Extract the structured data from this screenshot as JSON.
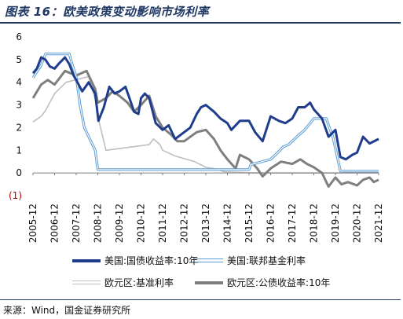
{
  "title": "图表 16：欧美政策变动影响市场利率",
  "source": "来源：Wind，国金证券研究所",
  "chart_data": {
    "type": "line",
    "title": "图表 16：欧美政策变动影响市场利率",
    "xlabel": "",
    "ylabel": "",
    "x_ticks": [
      "2005-12",
      "2006-12",
      "2007-12",
      "2008-12",
      "2009-12",
      "2010-12",
      "2011-12",
      "2012-12",
      "2013-12",
      "2014-12",
      "2015-12",
      "2016-12",
      "2017-12",
      "2018-12",
      "2019-12",
      "2020-12",
      "2021-12"
    ],
    "y_ticks": [
      {
        "value": 6,
        "label": "6"
      },
      {
        "value": 5,
        "label": "5"
      },
      {
        "value": 4,
        "label": "4"
      },
      {
        "value": 3,
        "label": "3"
      },
      {
        "value": 2,
        "label": "2"
      },
      {
        "value": 1,
        "label": "1"
      },
      {
        "value": 0,
        "label": "0"
      },
      {
        "value": -1,
        "label": "(1)"
      }
    ],
    "ylim": [
      -1,
      6
    ],
    "xlim": [
      2005.92,
      2021.92
    ],
    "grid": false,
    "legend_position": "bottom",
    "series": [
      {
        "name": "美国:国债收益率:10年",
        "color": "#1f3d8c",
        "style": "solid-thick",
        "points": [
          [
            2005.92,
            4.4
          ],
          [
            2006.1,
            4.6
          ],
          [
            2006.3,
            5.1
          ],
          [
            2006.5,
            5.0
          ],
          [
            2006.7,
            4.7
          ],
          [
            2006.92,
            4.6
          ],
          [
            2007.1,
            4.8
          ],
          [
            2007.4,
            5.1
          ],
          [
            2007.6,
            4.8
          ],
          [
            2007.8,
            4.3
          ],
          [
            2007.92,
            4.1
          ],
          [
            2008.2,
            3.6
          ],
          [
            2008.5,
            4.0
          ],
          [
            2008.8,
            3.5
          ],
          [
            2008.95,
            2.3
          ],
          [
            2009.2,
            2.9
          ],
          [
            2009.45,
            3.8
          ],
          [
            2009.7,
            3.5
          ],
          [
            2009.92,
            3.6
          ],
          [
            2010.2,
            3.8
          ],
          [
            2010.35,
            3.4
          ],
          [
            2010.6,
            2.7
          ],
          [
            2010.8,
            2.6
          ],
          [
            2010.92,
            3.3
          ],
          [
            2011.1,
            3.5
          ],
          [
            2011.3,
            3.3
          ],
          [
            2011.6,
            2.2
          ],
          [
            2011.92,
            1.9
          ],
          [
            2012.2,
            2.1
          ],
          [
            2012.5,
            1.5
          ],
          [
            2012.92,
            1.8
          ],
          [
            2013.2,
            2.0
          ],
          [
            2013.5,
            2.6
          ],
          [
            2013.7,
            2.9
          ],
          [
            2013.92,
            3.0
          ],
          [
            2014.3,
            2.7
          ],
          [
            2014.6,
            2.4
          ],
          [
            2014.92,
            2.2
          ],
          [
            2015.1,
            1.9
          ],
          [
            2015.5,
            2.3
          ],
          [
            2015.92,
            2.3
          ],
          [
            2016.2,
            1.8
          ],
          [
            2016.55,
            1.4
          ],
          [
            2016.92,
            2.5
          ],
          [
            2017.3,
            2.3
          ],
          [
            2017.6,
            2.2
          ],
          [
            2017.92,
            2.4
          ],
          [
            2018.2,
            2.9
          ],
          [
            2018.5,
            2.9
          ],
          [
            2018.75,
            3.1
          ],
          [
            2018.92,
            2.8
          ],
          [
            2019.3,
            2.4
          ],
          [
            2019.6,
            1.6
          ],
          [
            2019.92,
            1.9
          ],
          [
            2020.15,
            0.7
          ],
          [
            2020.4,
            0.6
          ],
          [
            2020.7,
            0.8
          ],
          [
            2020.92,
            0.9
          ],
          [
            2021.2,
            1.6
          ],
          [
            2021.5,
            1.3
          ],
          [
            2021.92,
            1.5
          ]
        ]
      },
      {
        "name": "美国:联邦基金利率",
        "color": "#5a9bd5",
        "style": "double",
        "points": [
          [
            2005.92,
            4.2
          ],
          [
            2006.3,
            4.75
          ],
          [
            2006.5,
            5.25
          ],
          [
            2007.6,
            5.25
          ],
          [
            2007.75,
            4.75
          ],
          [
            2007.92,
            4.25
          ],
          [
            2008.1,
            3.0
          ],
          [
            2008.3,
            2.0
          ],
          [
            2008.8,
            1.0
          ],
          [
            2008.92,
            0.15
          ],
          [
            2015.92,
            0.15
          ],
          [
            2016.0,
            0.37
          ],
          [
            2016.92,
            0.6
          ],
          [
            2017.25,
            0.9
          ],
          [
            2017.5,
            1.15
          ],
          [
            2017.75,
            1.25
          ],
          [
            2017.92,
            1.4
          ],
          [
            2018.25,
            1.7
          ],
          [
            2018.5,
            1.9
          ],
          [
            2018.75,
            2.2
          ],
          [
            2018.92,
            2.4
          ],
          [
            2019.5,
            2.4
          ],
          [
            2019.6,
            2.1
          ],
          [
            2019.8,
            1.6
          ],
          [
            2020.15,
            0.08
          ],
          [
            2021.92,
            0.08
          ]
        ]
      },
      {
        "name": "欧元区:基准利率",
        "color": "#bfbfbf",
        "style": "solid-thin",
        "points": [
          [
            2005.92,
            2.25
          ],
          [
            2006.3,
            2.5
          ],
          [
            2006.5,
            2.75
          ],
          [
            2006.92,
            3.5
          ],
          [
            2007.45,
            4.0
          ],
          [
            2008.5,
            4.25
          ],
          [
            2008.8,
            3.25
          ],
          [
            2008.92,
            2.5
          ],
          [
            2009.3,
            1.0
          ],
          [
            2011.3,
            1.25
          ],
          [
            2011.5,
            1.5
          ],
          [
            2011.8,
            1.25
          ],
          [
            2011.92,
            1.0
          ],
          [
            2012.5,
            0.75
          ],
          [
            2013.4,
            0.5
          ],
          [
            2013.92,
            0.25
          ],
          [
            2014.5,
            0.15
          ],
          [
            2014.75,
            0.05
          ],
          [
            2016.2,
            0.0
          ],
          [
            2021.92,
            0.0
          ]
        ]
      },
      {
        "name": "欧元区:公债收益率:10年",
        "color": "#7f7f7f",
        "style": "solid-thick",
        "points": [
          [
            2005.92,
            3.3
          ],
          [
            2006.3,
            3.9
          ],
          [
            2006.6,
            4.1
          ],
          [
            2006.92,
            3.9
          ],
          [
            2007.4,
            4.5
          ],
          [
            2007.92,
            4.3
          ],
          [
            2008.4,
            4.5
          ],
          [
            2008.8,
            3.7
          ],
          [
            2008.92,
            3.1
          ],
          [
            2009.3,
            3.3
          ],
          [
            2009.6,
            3.6
          ],
          [
            2009.92,
            3.4
          ],
          [
            2010.3,
            3.1
          ],
          [
            2010.6,
            2.7
          ],
          [
            2010.92,
            3.0
          ],
          [
            2011.3,
            3.4
          ],
          [
            2011.6,
            2.5
          ],
          [
            2011.92,
            2.0
          ],
          [
            2012.3,
            1.7
          ],
          [
            2012.6,
            1.4
          ],
          [
            2012.92,
            1.4
          ],
          [
            2013.5,
            1.8
          ],
          [
            2013.92,
            1.9
          ],
          [
            2014.3,
            1.5
          ],
          [
            2014.6,
            1.0
          ],
          [
            2014.92,
            0.6
          ],
          [
            2015.3,
            0.2
          ],
          [
            2015.5,
            0.8
          ],
          [
            2015.92,
            0.6
          ],
          [
            2016.3,
            0.2
          ],
          [
            2016.55,
            -0.15
          ],
          [
            2016.92,
            0.2
          ],
          [
            2017.4,
            0.5
          ],
          [
            2017.92,
            0.4
          ],
          [
            2018.3,
            0.6
          ],
          [
            2018.6,
            0.4
          ],
          [
            2018.92,
            0.25
          ],
          [
            2019.3,
            0.0
          ],
          [
            2019.6,
            -0.6
          ],
          [
            2019.92,
            -0.2
          ],
          [
            2020.2,
            -0.5
          ],
          [
            2020.5,
            -0.4
          ],
          [
            2020.92,
            -0.55
          ],
          [
            2021.2,
            -0.3
          ],
          [
            2021.5,
            -0.2
          ],
          [
            2021.7,
            -0.4
          ],
          [
            2021.92,
            -0.3
          ]
        ]
      }
    ]
  }
}
